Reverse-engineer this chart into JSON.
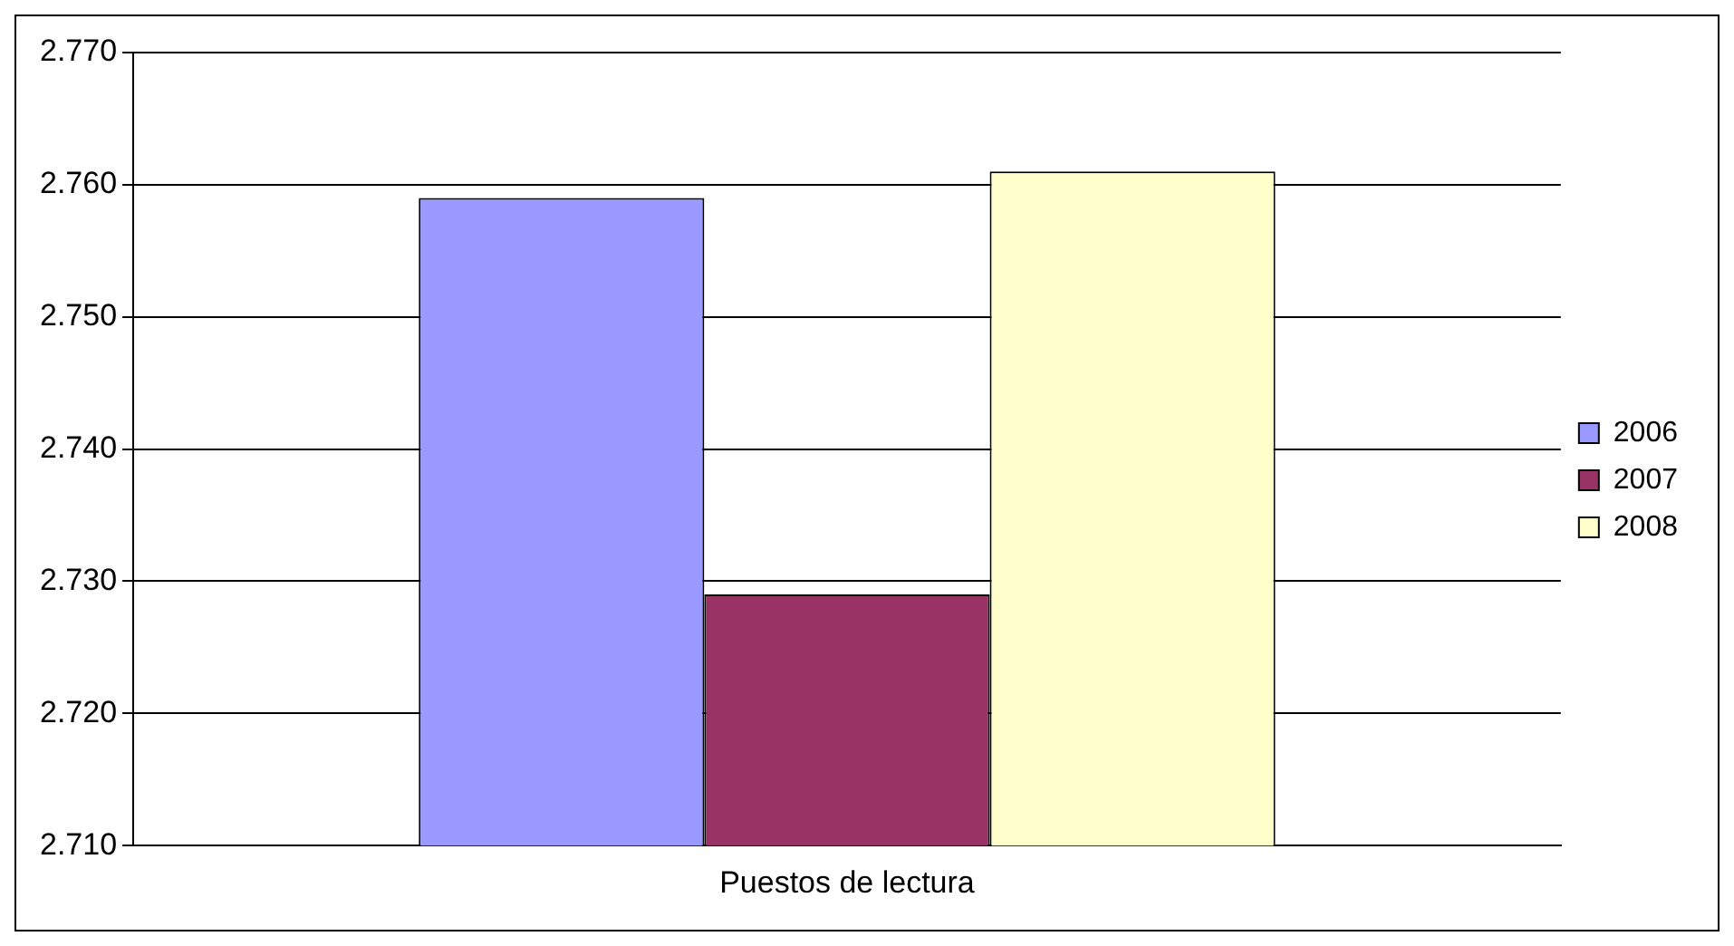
{
  "chart_data": {
    "type": "bar",
    "categories": [
      "Puestos de lectura"
    ],
    "series": [
      {
        "name": "2006",
        "color": "#9999ff",
        "values": [
          2759
        ]
      },
      {
        "name": "2007",
        "color": "#993366",
        "values": [
          2729
        ]
      },
      {
        "name": "2008",
        "color": "#ffffcc",
        "values": [
          2761
        ]
      }
    ],
    "ylim": [
      2710,
      2770
    ],
    "yticks": [
      {
        "value": 2710,
        "label": "2.710"
      },
      {
        "value": 2720,
        "label": "2.720"
      },
      {
        "value": 2730,
        "label": "2.730"
      },
      {
        "value": 2740,
        "label": "2.740"
      },
      {
        "value": 2750,
        "label": "2.750"
      },
      {
        "value": 2760,
        "label": "2.760"
      },
      {
        "value": 2770,
        "label": "2.770"
      }
    ],
    "grid": "y",
    "legend": "right"
  }
}
